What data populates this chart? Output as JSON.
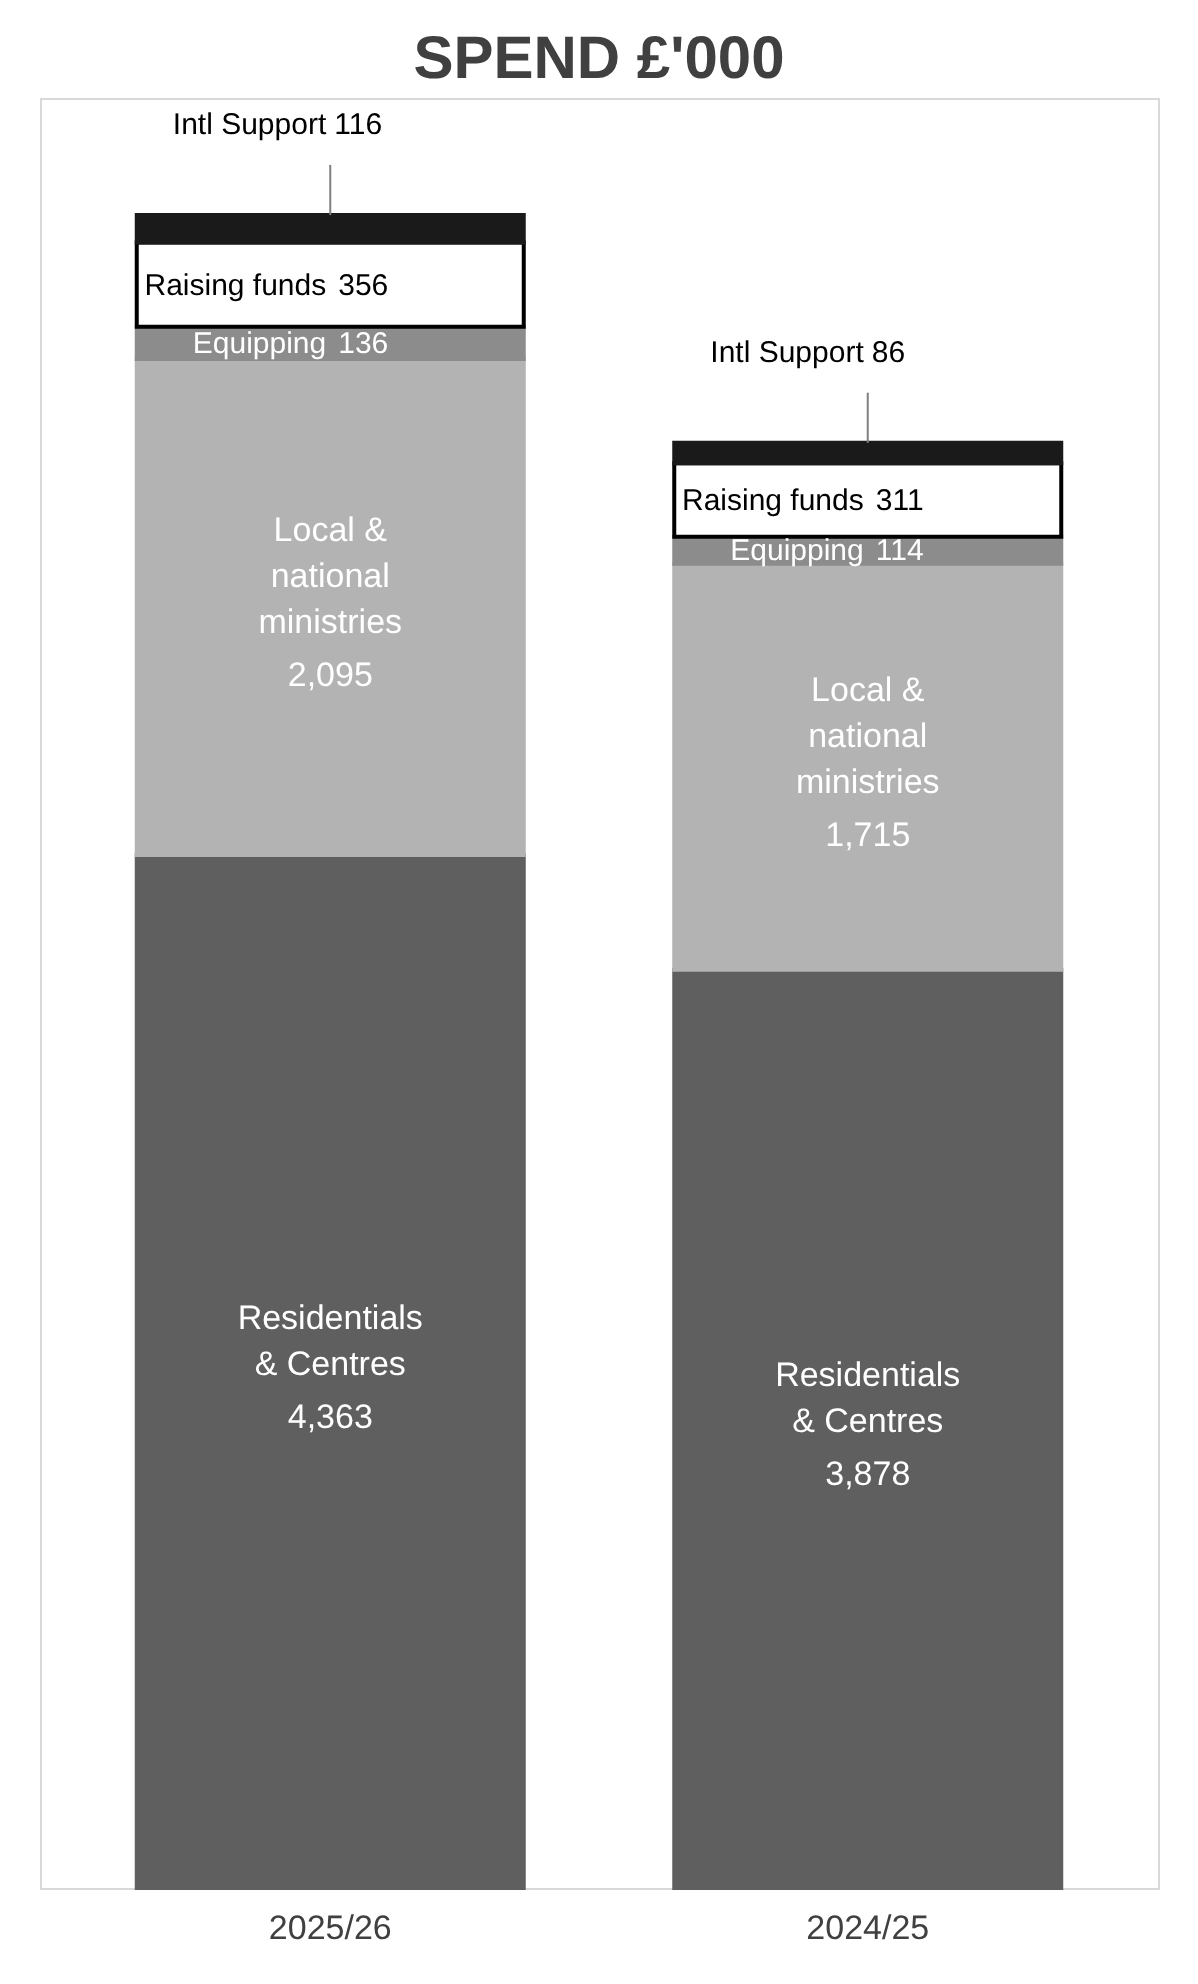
{
  "chart_data": {
    "type": "bar",
    "title": "SPEND £'000",
    "stacked": true,
    "categories": [
      "2025/26",
      "2024/25"
    ],
    "series": [
      {
        "name": "Residentials & Centres",
        "color": "#5f5f5f",
        "values": [
          4363,
          3878
        ],
        "value_labels": [
          "4,363",
          "3,878"
        ]
      },
      {
        "name": "Local & national ministries",
        "color": "#b3b3b3",
        "values": [
          2095,
          1715
        ],
        "value_labels": [
          "2,095",
          "1,715"
        ]
      },
      {
        "name": "Equipping",
        "color": "#8c8c8c",
        "values": [
          136,
          114
        ],
        "value_labels": [
          "136",
          "114"
        ]
      },
      {
        "name": "Raising funds",
        "color": "#ffffff",
        "values": [
          356,
          311
        ],
        "value_labels": [
          "356",
          "311"
        ]
      },
      {
        "name": "Intl Support",
        "color": "#1a1a1a",
        "values": [
          116,
          86
        ],
        "value_labels": [
          "116",
          "86"
        ]
      }
    ]
  }
}
